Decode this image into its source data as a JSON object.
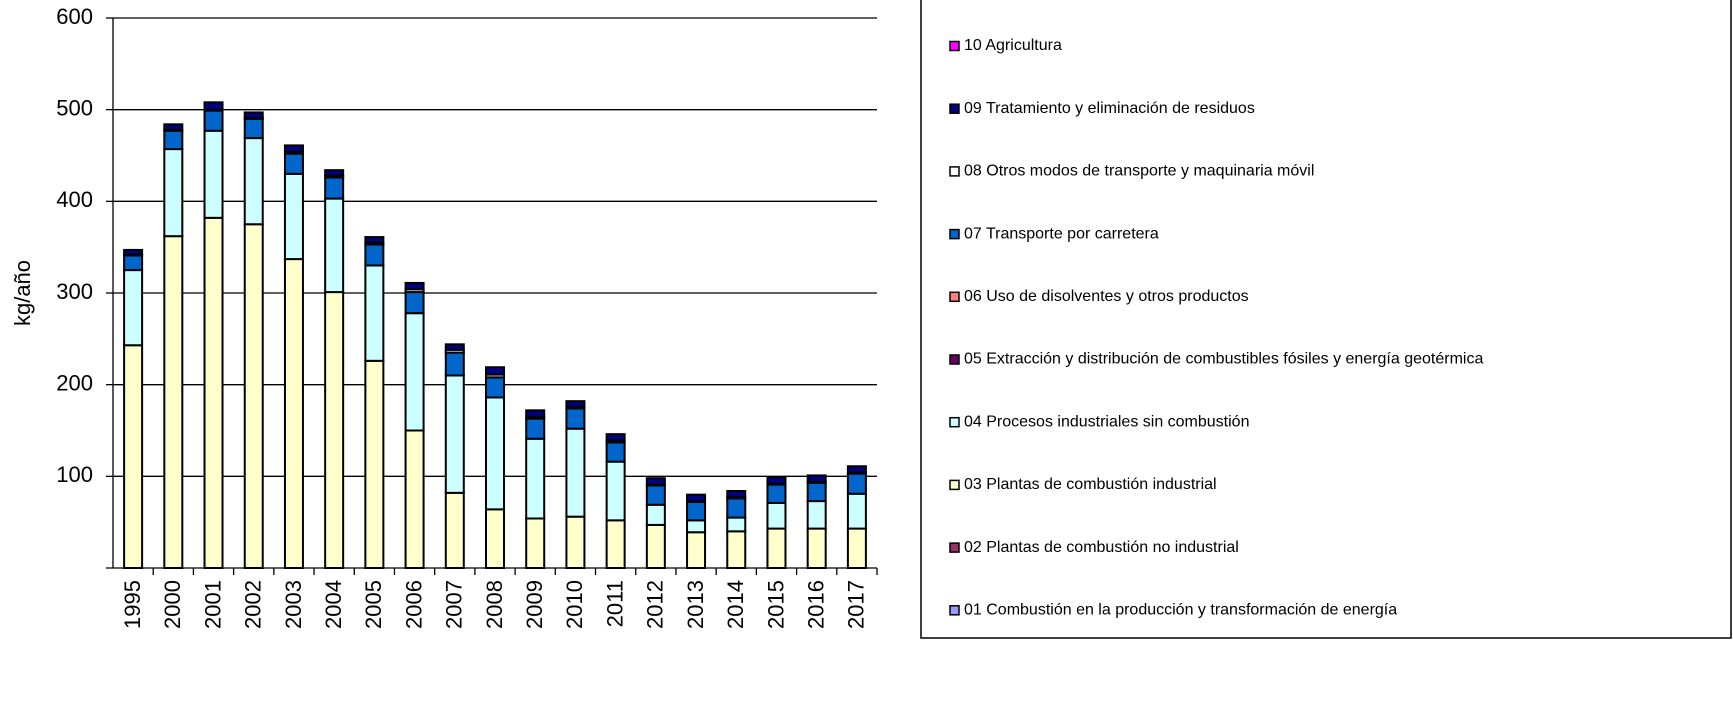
{
  "chart_data": {
    "type": "stacked_bar",
    "y_label": "kg/año",
    "categories": [
      "1995",
      "2000",
      "2001",
      "2002",
      "2003",
      "2004",
      "2005",
      "2006",
      "2007",
      "2008",
      "2009",
      "2010",
      "2011",
      "2012",
      "2013",
      "2014",
      "2015",
      "2016",
      "2017"
    ],
    "series": [
      {
        "name": "01 Combustión en la producción y transformación de energía",
        "color": "#9999ff",
        "values": [
          0,
          0,
          0,
          0,
          0,
          0,
          0,
          0,
          0,
          0,
          0,
          0,
          0,
          0,
          0,
          0,
          0,
          0,
          0
        ]
      },
      {
        "name": "02 Plantas de combustión no industrial",
        "color": "#993366",
        "values": [
          0,
          0,
          0,
          0,
          0,
          0,
          0,
          0,
          0,
          0,
          0,
          0,
          0,
          0,
          0,
          0,
          0,
          0,
          0
        ]
      },
      {
        "name": "03 Plantas de combustión industrial",
        "color": "#ffffcc",
        "values": [
          243,
          362,
          382,
          375,
          337,
          301,
          226,
          150,
          82,
          64,
          54,
          56,
          52,
          47,
          39,
          40,
          43,
          43,
          43
        ]
      },
      {
        "name": "04 Procesos industriales sin combustión",
        "color": "#ccffff",
        "values": [
          82,
          95,
          95,
          94,
          93,
          102,
          104,
          128,
          128,
          122,
          87,
          96,
          64,
          22,
          13,
          15,
          28,
          30,
          38
        ]
      },
      {
        "name": "05 Extracción y distribución de combustibles fósiles y energía geotérmica",
        "color": "#660066",
        "values": [
          0,
          0,
          0,
          0,
          0,
          0,
          0,
          0,
          0,
          0,
          0,
          0,
          0,
          0,
          0,
          0,
          0,
          0,
          0
        ]
      },
      {
        "name": "06 Uso de disolventes y otros productos",
        "color": "#ff8080",
        "values": [
          0,
          0,
          0,
          0,
          0,
          0,
          0,
          0,
          0,
          0,
          0,
          0,
          0,
          0,
          0,
          0,
          0,
          0,
          0
        ]
      },
      {
        "name": "07 Transporte por carretera",
        "color": "#0066cc",
        "values": [
          16,
          20,
          22,
          21,
          22,
          23,
          23,
          23,
          25,
          22,
          22,
          22,
          21,
          21,
          20,
          21,
          20,
          20,
          22
        ]
      },
      {
        "name": "08 Otros modos de transporte y maquinaria móvil",
        "color": "#ffffff",
        "values": [
          1,
          1,
          1,
          1,
          2,
          2,
          2,
          3,
          3,
          3,
          2,
          2,
          2,
          1,
          1,
          1,
          1,
          1,
          1
        ]
      },
      {
        "name": "09 Tratamiento y eliminación de residuos",
        "color": "#000080",
        "values": [
          5,
          6,
          8,
          6,
          7,
          6,
          6,
          7,
          6,
          8,
          7,
          6,
          7,
          7,
          7,
          7,
          7,
          7,
          7
        ]
      },
      {
        "name": "10 Agricultura",
        "color": "#ff00ff",
        "values": [
          0,
          0,
          0,
          0,
          0,
          0,
          0,
          0,
          0,
          0,
          0,
          0,
          0,
          0,
          0,
          0,
          0,
          0,
          0
        ]
      }
    ],
    "ylim": [
      0,
      600
    ],
    "yticks": [
      100,
      200,
      300,
      400,
      500,
      600
    ],
    "grid": true
  }
}
